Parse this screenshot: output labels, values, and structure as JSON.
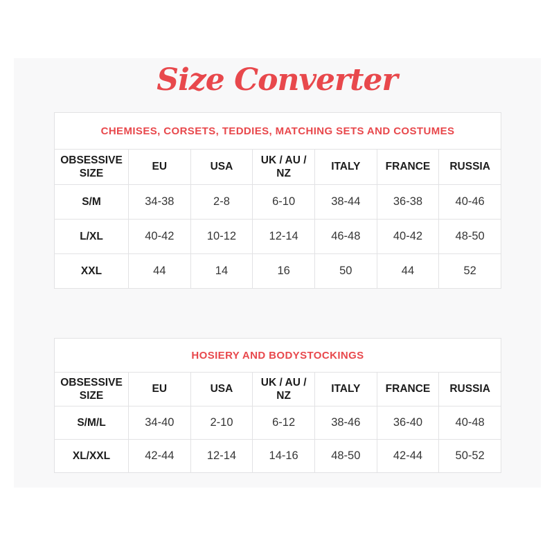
{
  "page": {
    "title": "Size Converter",
    "accent_color": "#e8484c",
    "text_color": "#363636"
  },
  "tables": [
    {
      "title": "CHEMISES, CORSETS, TEDDIES, MATCHING SETS AND COSTUMES",
      "columns": [
        "OBSESSIVE SIZE",
        "EU",
        "USA",
        "UK / AU / NZ",
        "ITALY",
        "FRANCE",
        "RUSSIA"
      ],
      "rows": [
        [
          "S/M",
          "34-38",
          "2-8",
          "6-10",
          "38-44",
          "36-38",
          "40-46"
        ],
        [
          "L/XL",
          "40-42",
          "10-12",
          "12-14",
          "46-48",
          "40-42",
          "48-50"
        ],
        [
          "XXL",
          "44",
          "14",
          "16",
          "50",
          "44",
          "52"
        ]
      ]
    },
    {
      "title": "HOSIERY AND BODYSTOCKINGS",
      "columns": [
        "OBSESSIVE SIZE",
        "EU",
        "USA",
        "UK / AU / NZ",
        "ITALY",
        "FRANCE",
        "RUSSIA"
      ],
      "rows": [
        [
          "S/M/L",
          "34-40",
          "2-10",
          "6-12",
          "38-46",
          "36-40",
          "40-48"
        ],
        [
          "XL/XXL",
          "42-44",
          "12-14",
          "14-16",
          "48-50",
          "42-44",
          "50-52"
        ]
      ]
    }
  ]
}
